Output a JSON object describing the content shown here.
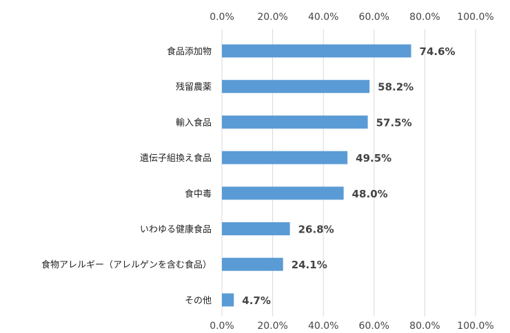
{
  "chart_data": {
    "type": "bar",
    "orientation": "horizontal",
    "categories": [
      "食品添加物",
      "残留農薬",
      "輸入食品",
      "遺伝子組換え食品",
      "食中毒",
      "いわゆる健康食品",
      "食物アレルギー（アレルゲンを含む食品）",
      "その他"
    ],
    "values": [
      74.6,
      58.2,
      57.5,
      49.5,
      48.0,
      26.8,
      24.1,
      4.7
    ],
    "value_labels": [
      "74.6%",
      "58.2%",
      "57.5%",
      "49.5%",
      "48.0%",
      "26.8%",
      "24.1%",
      "4.7%"
    ],
    "x_ticks": [
      "0.0%",
      "20.0%",
      "40.0%",
      "60.0%",
      "80.0%",
      "100.0%"
    ],
    "xlim": [
      0,
      100
    ],
    "grid": true,
    "bar_color": "#5b9bd5",
    "grid_color": "#d9d9d9"
  }
}
